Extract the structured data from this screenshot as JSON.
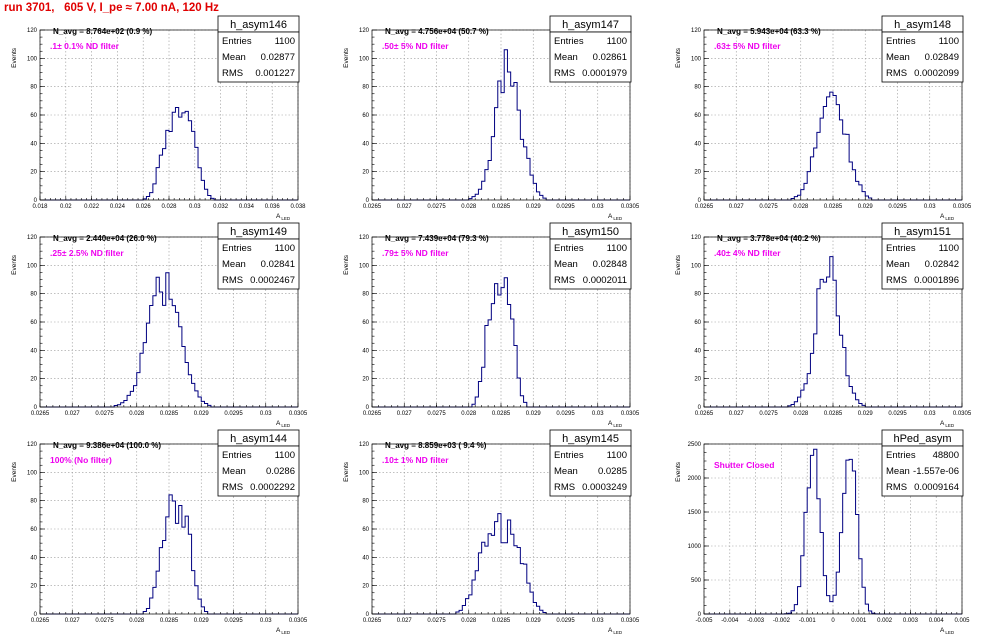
{
  "title": "run 3701,   605 V, I_pe ≈ 7.00 nA, 120 Hz",
  "chart_data": [
    {
      "type": "histogram",
      "name": "h_asym146",
      "n_avg": "N_avg = 8.764e+02 (0.9 %)",
      "filter": ".1± 0.1% ND filter",
      "stats": {
        "entries": "1100",
        "mean": "0.02877",
        "rms": "0.001227"
      },
      "xlim": [
        0.018,
        0.038
      ],
      "xticks": [
        "0.018",
        "0.02",
        "0.022",
        "0.024",
        "0.026",
        "0.028",
        "0.03",
        "0.032",
        "0.034",
        "0.036",
        "0.038"
      ],
      "ylim": [
        0,
        120
      ],
      "yticks": [
        "0",
        "20",
        "40",
        "60",
        "80",
        "100",
        "120"
      ],
      "xlabel": "A_LED",
      "ylabel": "Events",
      "bin_centers_x": [
        0.02877
      ],
      "mean": 0.02877,
      "rms": 0.001227,
      "peak": 65,
      "shape": "flat"
    },
    {
      "type": "histogram",
      "name": "h_asym147",
      "n_avg": "N_avg = 4.756e+04 (50.7 %)",
      "filter": ".50± 5% ND filter",
      "stats": {
        "entries": "1100",
        "mean": "0.02861",
        "rms": "0.0001979"
      },
      "xlim": [
        0.0265,
        0.0305
      ],
      "xticks": [
        "0.0265",
        "0.027",
        "0.0275",
        "0.028",
        "0.0285",
        "0.029",
        "0.0295",
        "0.03",
        "0.0305"
      ],
      "ylim": [
        0,
        120
      ],
      "yticks": [
        "0",
        "20",
        "40",
        "60",
        "80",
        "100",
        "120"
      ],
      "xlabel": "A_LED",
      "ylabel": "Events",
      "mean": 0.02861,
      "rms": 0.0001979,
      "peak": 94,
      "shape": "peak"
    },
    {
      "type": "histogram",
      "name": "h_asym148",
      "n_avg": "N_avg = 5.943e+04 (63.3 %)",
      "filter": ".63± 5% ND filter",
      "stats": {
        "entries": "1100",
        "mean": "0.02849",
        "rms": "0.0002099"
      },
      "xlim": [
        0.0265,
        0.0305
      ],
      "xticks": [
        "0.0265",
        "0.027",
        "0.0275",
        "0.028",
        "0.0285",
        "0.029",
        "0.0295",
        "0.03",
        "0.0305"
      ],
      "ylim": [
        0,
        120
      ],
      "yticks": [
        "0",
        "20",
        "40",
        "60",
        "80",
        "100",
        "120"
      ],
      "xlabel": "A_LED",
      "ylabel": "Events",
      "mean": 0.02849,
      "rms": 0.0002099,
      "peak": 80,
      "shape": "peak"
    },
    {
      "type": "histogram",
      "name": "h_asym149",
      "n_avg": "N_avg = 2.440e+04 (26.0 %)",
      "filter": ".25± 2.5% ND filter",
      "stats": {
        "entries": "1100",
        "mean": "0.02841",
        "rms": "0.0002467"
      },
      "xlim": [
        0.0265,
        0.0305
      ],
      "xticks": [
        "0.0265",
        "0.027",
        "0.0275",
        "0.028",
        "0.0285",
        "0.029",
        "0.0295",
        "0.03",
        "0.0305"
      ],
      "ylim": [
        0,
        120
      ],
      "yticks": [
        "0",
        "20",
        "40",
        "60",
        "80",
        "100",
        "120"
      ],
      "xlabel": "A_LED",
      "ylabel": "Events",
      "mean": 0.02841,
      "rms": 0.0002467,
      "peak": 86,
      "shape": "peak"
    },
    {
      "type": "histogram",
      "name": "h_asym150",
      "n_avg": "N_avg = 7.439e+04 (79.3 %)",
      "filter": ".79± 5% ND filter",
      "stats": {
        "entries": "1100",
        "mean": "0.02848",
        "rms": "0.0002011"
      },
      "xlim": [
        0.0265,
        0.0305
      ],
      "xticks": [
        "0.0265",
        "0.027",
        "0.0275",
        "0.028",
        "0.0285",
        "0.029",
        "0.0295",
        "0.03",
        "0.0305"
      ],
      "ylim": [
        0,
        120
      ],
      "yticks": [
        "0",
        "20",
        "40",
        "60",
        "80",
        "100",
        "120"
      ],
      "xlabel": "A_LED",
      "ylabel": "Events",
      "mean": 0.02848,
      "rms": 0.0002011,
      "peak": 86,
      "shape": "flat"
    },
    {
      "type": "histogram",
      "name": "h_asym151",
      "n_avg": "N_avg = 3.778e+04 (40.2 %)",
      "filter": ".40± 4% ND filter",
      "stats": {
        "entries": "1100",
        "mean": "0.02842",
        "rms": "0.0001896"
      },
      "xlim": [
        0.0265,
        0.0305
      ],
      "xticks": [
        "0.0265",
        "0.027",
        "0.0275",
        "0.028",
        "0.0285",
        "0.029",
        "0.0295",
        "0.03",
        "0.0305"
      ],
      "ylim": [
        0,
        120
      ],
      "yticks": [
        "0",
        "20",
        "40",
        "60",
        "80",
        "100",
        "120"
      ],
      "xlabel": "A_LED",
      "ylabel": "Events",
      "mean": 0.02842,
      "rms": 0.0001896,
      "peak": 96,
      "shape": "peak"
    },
    {
      "type": "histogram",
      "name": "h_asym144",
      "n_avg": "N_avg = 9.386e+04 (100.0 %)",
      "filter": "100% (No filter)",
      "stats": {
        "entries": "1100",
        "mean": "0.0286",
        "rms": "0.0002292"
      },
      "xlim": [
        0.0265,
        0.0305
      ],
      "xticks": [
        "0.0265",
        "0.027",
        "0.0275",
        "0.028",
        "0.0285",
        "0.029",
        "0.0295",
        "0.03",
        "0.0305"
      ],
      "ylim": [
        0,
        120
      ],
      "yticks": [
        "0",
        "20",
        "40",
        "60",
        "80",
        "100",
        "120"
      ],
      "xlabel": "A_LED",
      "ylabel": "Events",
      "mean": 0.0286,
      "rms": 0.0002292,
      "peak": 79,
      "shape": "flat"
    },
    {
      "type": "histogram",
      "name": "h_asym145",
      "n_avg": "N_avg = 8.859e+03 ( 9.4 %)",
      "filter": ".10± 1% ND filter",
      "stats": {
        "entries": "1100",
        "mean": "0.0285",
        "rms": "0.0003249"
      },
      "xlim": [
        0.0265,
        0.0305
      ],
      "xticks": [
        "0.0265",
        "0.027",
        "0.0275",
        "0.028",
        "0.0285",
        "0.029",
        "0.0295",
        "0.03",
        "0.0305"
      ],
      "ylim": [
        0,
        120
      ],
      "yticks": [
        "0",
        "20",
        "40",
        "60",
        "80",
        "100",
        "120"
      ],
      "xlabel": "A_LED",
      "ylabel": "Events",
      "mean": 0.0285,
      "rms": 0.0003249,
      "peak": 64,
      "shape": "flat"
    },
    {
      "type": "histogram",
      "name": "hPed_asym",
      "n_avg": "",
      "filter": "Shutter Closed",
      "stats": {
        "entries": "48800",
        "mean": "-1.557e-06",
        "rms": "0.0009164"
      },
      "xlim": [
        -0.005,
        0.005
      ],
      "xticks": [
        "-0.005",
        "-0.004",
        "-0.003",
        "-0.002",
        "-0.001",
        "0",
        "0.001",
        "0.002",
        "0.003",
        "0.004",
        "0.005"
      ],
      "ylim": [
        0,
        2500
      ],
      "yticks": [
        "0",
        "500",
        "1000",
        "1500",
        "2000",
        "2500"
      ],
      "xlabel": "A_LED",
      "ylabel": "Events",
      "mean": -1.6e-06,
      "rms": 0.0009164,
      "peak": 2440,
      "shape": "double"
    }
  ]
}
